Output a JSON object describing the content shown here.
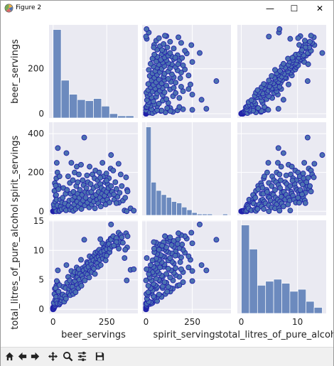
{
  "window": {
    "title": "Figure 2",
    "minimize_glyph": "—",
    "maximize_glyph": "☐",
    "close_glyph": "✕"
  },
  "toolbar": {
    "buttons": [
      "home-icon",
      "back-arrow-icon",
      "forward-arrow-icon",
      "pan-icon",
      "zoom-icon",
      "configure-subplots-icon",
      "save-icon"
    ]
  },
  "colors": {
    "accent": "#4c72b0",
    "panel_bg": "#eaeaf2",
    "point_edge": "#2222aa"
  },
  "chart_data": {
    "type": "scatter",
    "kind": "pairplot",
    "variables": [
      "beer_servings",
      "spirit_servings",
      "total_litres_of_pure_alcohol"
    ],
    "axis_labels": [
      "beer_servings",
      "spirit_servings",
      "total_litres_of_pure_alcohol"
    ],
    "ranges": [
      [
        -19,
        395
      ],
      [
        -21,
        459
      ],
      [
        -0.7,
        15.1
      ]
    ],
    "ticks": [
      [
        0,
        200
      ],
      [
        0,
        200,
        400
      ],
      [
        0,
        5,
        10,
        15
      ]
    ],
    "x_ticks": [
      [
        0,
        250
      ],
      [
        0,
        250
      ],
      [
        0,
        10
      ]
    ],
    "grid": true,
    "diagonal_histograms": [
      {
        "variable": "beer_servings",
        "bin_edges": [
          0,
          37.6,
          75.2,
          112.8,
          150.4,
          188,
          225.6,
          263.2,
          300.8,
          338.4,
          376
        ],
        "counts": [
          82,
          35,
          22,
          17,
          16,
          18,
          11,
          4,
          2,
          2
        ]
      },
      {
        "variable": "spirit_servings",
        "bin_edges": [
          0,
          27.6,
          55.2,
          82.8,
          110.4,
          138,
          165.6,
          193.2,
          220.8,
          248.4,
          276,
          303.6,
          331.2,
          358.8,
          386.4,
          414,
          441.6
        ],
        "counts": [
          64,
          24,
          18,
          15,
          13,
          10,
          9,
          6,
          4,
          2,
          1,
          1,
          1,
          0,
          0,
          1
        ]
      },
      {
        "variable": "total_litres_of_pure_alcohol",
        "bin_edges": [
          0,
          1.44,
          2.88,
          4.32,
          5.76,
          7.2,
          8.64,
          10.08,
          11.52,
          12.96,
          14.4
        ],
        "counts": [
          44,
          32,
          14,
          16,
          17,
          15,
          11,
          12,
          6,
          3
        ]
      }
    ],
    "points": [
      [
        0,
        0,
        0
      ],
      [
        0,
        0,
        0
      ],
      [
        0,
        0,
        0
      ],
      [
        0,
        0,
        0
      ],
      [
        0,
        0,
        0
      ],
      [
        0,
        0,
        0
      ],
      [
        0,
        0,
        0.1
      ],
      [
        0,
        0,
        0.1
      ],
      [
        0,
        0,
        0.1
      ],
      [
        0,
        0,
        0.1
      ],
      [
        0,
        0,
        0.2
      ],
      [
        0,
        0,
        0.2
      ],
      [
        0,
        0,
        0.2
      ],
      [
        0,
        0,
        0.3
      ],
      [
        0,
        0,
        0.3
      ],
      [
        1,
        0,
        0.1
      ],
      [
        1,
        0,
        0.2
      ],
      [
        1,
        1,
        0.1
      ],
      [
        2,
        0,
        0.3
      ],
      [
        2,
        1,
        0.2
      ],
      [
        3,
        0,
        0.1
      ],
      [
        3,
        1,
        0.2
      ],
      [
        5,
        2,
        0.3
      ],
      [
        5,
        1,
        0.4
      ],
      [
        6,
        3,
        0.4
      ],
      [
        8,
        2,
        0.5
      ],
      [
        9,
        6,
        0.7
      ],
      [
        10,
        4,
        0.6
      ],
      [
        12,
        7,
        0.8
      ],
      [
        15,
        0,
        1.0
      ],
      [
        5,
        22,
        0.9
      ],
      [
        3,
        35,
        1.1
      ],
      [
        10,
        50,
        1.6
      ],
      [
        12,
        80,
        2.3
      ],
      [
        6,
        105,
        2.6
      ],
      [
        21,
        121,
        3.1
      ],
      [
        8,
        145,
        3.5
      ],
      [
        15,
        170,
        4.0
      ],
      [
        20,
        200,
        4.6
      ],
      [
        25,
        131,
        3.0
      ],
      [
        17,
        250,
        4.8
      ],
      [
        22,
        326,
        6.6
      ],
      [
        14,
        84,
        2.1
      ],
      [
        30,
        180,
        4.1
      ],
      [
        16,
        60,
        1.4
      ],
      [
        12,
        132,
        3.6
      ],
      [
        25,
        114,
        3.0
      ],
      [
        28,
        0,
        0.8
      ],
      [
        20,
        30,
        1.0
      ],
      [
        31,
        4,
        1.0
      ],
      [
        34,
        60,
        2.1
      ],
      [
        36,
        25,
        1.2
      ],
      [
        40,
        10,
        1.5
      ],
      [
        42,
        45,
        2.0
      ],
      [
        45,
        70,
        2.5
      ],
      [
        48,
        120,
        3.8
      ],
      [
        52,
        15,
        1.3
      ],
      [
        55,
        40,
        2.2
      ],
      [
        58,
        90,
        3.6
      ],
      [
        60,
        5,
        1.8
      ],
      [
        62,
        300,
        7.5
      ],
      [
        65,
        110,
        4.5
      ],
      [
        70,
        180,
        5.5
      ],
      [
        72,
        30,
        2.8
      ],
      [
        75,
        55,
        3.5
      ],
      [
        78,
        146,
        4.9
      ],
      [
        80,
        8,
        2.4
      ],
      [
        82,
        90,
        3.9
      ],
      [
        85,
        250,
        6.5
      ],
      [
        88,
        20,
        3.0
      ],
      [
        90,
        60,
        3.8
      ],
      [
        92,
        160,
        5.8
      ],
      [
        94,
        2,
        2.6
      ],
      [
        95,
        100,
        4.6
      ],
      [
        98,
        35,
        3.2
      ],
      [
        100,
        200,
        6.3
      ],
      [
        102,
        75,
        4.8
      ],
      [
        105,
        12,
        2.9
      ],
      [
        108,
        130,
        5.4
      ],
      [
        110,
        230,
        7.1
      ],
      [
        112,
        50,
        4.1
      ],
      [
        114,
        90,
        5.5
      ],
      [
        115,
        150,
        6.2
      ],
      [
        118,
        25,
        3.6
      ],
      [
        120,
        190,
        6.8
      ],
      [
        122,
        70,
        5.0
      ],
      [
        125,
        110,
        6.0
      ],
      [
        128,
        40,
        4.3
      ],
      [
        130,
        240,
        8.4
      ],
      [
        132,
        12,
        4.0
      ],
      [
        135,
        85,
        5.7
      ],
      [
        138,
        160,
        7.0
      ],
      [
        140,
        55,
        5.2
      ],
      [
        142,
        135,
        6.6
      ],
      [
        145,
        380,
        11.8
      ],
      [
        148,
        30,
        4.9
      ],
      [
        150,
        100,
        7.3
      ],
      [
        152,
        70,
        6.1
      ],
      [
        155,
        120,
        6.9
      ],
      [
        158,
        185,
        8.0
      ],
      [
        160,
        45,
        5.9
      ],
      [
        162,
        150,
        7.8
      ],
      [
        165,
        95,
        7.2
      ],
      [
        168,
        20,
        5.4
      ],
      [
        170,
        230,
        9.0
      ],
      [
        173,
        60,
        6.5
      ],
      [
        175,
        140,
        8.1
      ],
      [
        178,
        100,
        7.6
      ],
      [
        180,
        35,
        6.3
      ],
      [
        183,
        190,
        8.8
      ],
      [
        185,
        75,
        7.1
      ],
      [
        188,
        120,
        8.3
      ],
      [
        190,
        50,
        6.9
      ],
      [
        193,
        170,
        9.2
      ],
      [
        195,
        15,
        6.0
      ],
      [
        197,
        210,
        9.6
      ],
      [
        200,
        85,
        8.0
      ],
      [
        203,
        130,
        8.7
      ],
      [
        205,
        60,
        7.8
      ],
      [
        208,
        160,
        9.8
      ],
      [
        210,
        40,
        7.2
      ],
      [
        212,
        100,
        8.9
      ],
      [
        215,
        200,
        10.1
      ],
      [
        218,
        70,
        8.4
      ],
      [
        220,
        140,
        9.5
      ],
      [
        222,
        25,
        7.5
      ],
      [
        225,
        120,
        9.7
      ],
      [
        228,
        90,
        9.0
      ],
      [
        230,
        250,
        11.2
      ],
      [
        232,
        55,
        8.6
      ],
      [
        235,
        180,
        10.4
      ],
      [
        238,
        110,
        9.9
      ],
      [
        240,
        80,
        9.2
      ],
      [
        243,
        150,
        10.6
      ],
      [
        245,
        35,
        8.3
      ],
      [
        248,
        195,
        11.0
      ],
      [
        250,
        100,
        10.2
      ],
      [
        253,
        60,
        9.4
      ],
      [
        255,
        138,
        10.9
      ],
      [
        258,
        120,
        11.5
      ],
      [
        260,
        170,
        11.1
      ],
      [
        263,
        45,
        9.7
      ],
      [
        265,
        85,
        10.3
      ],
      [
        268,
        220,
        12.0
      ],
      [
        270,
        130,
        11.8
      ],
      [
        275,
        100,
        10.7
      ],
      [
        280,
        210,
        12.4
      ],
      [
        285,
        60,
        10.8
      ],
      [
        290,
        150,
        11.6
      ],
      [
        295,
        115,
        12.1
      ],
      [
        300,
        75,
        11.0
      ],
      [
        305,
        245,
        13.0
      ],
      [
        310,
        95,
        11.4
      ],
      [
        315,
        190,
        12.6
      ],
      [
        320,
        130,
        12.2
      ],
      [
        325,
        55,
        11.3
      ],
      [
        333,
        4,
        8.7
      ],
      [
        340,
        175,
        12.9
      ],
      [
        345,
        110,
        10.5
      ],
      [
        361,
        15,
        6.7
      ],
      [
        343,
        0,
        4.9
      ],
      [
        376,
        3,
        6.8
      ],
      [
        306,
        44,
        10.3
      ],
      [
        295,
        42,
        11.4
      ],
      [
        347,
        102,
        12.4
      ],
      [
        336,
        70,
        10.1
      ],
      [
        283,
        87,
        10.8
      ],
      [
        270,
        290,
        14.4
      ],
      [
        249,
        158,
        9.1
      ],
      [
        220,
        173,
        11.9
      ]
    ]
  }
}
